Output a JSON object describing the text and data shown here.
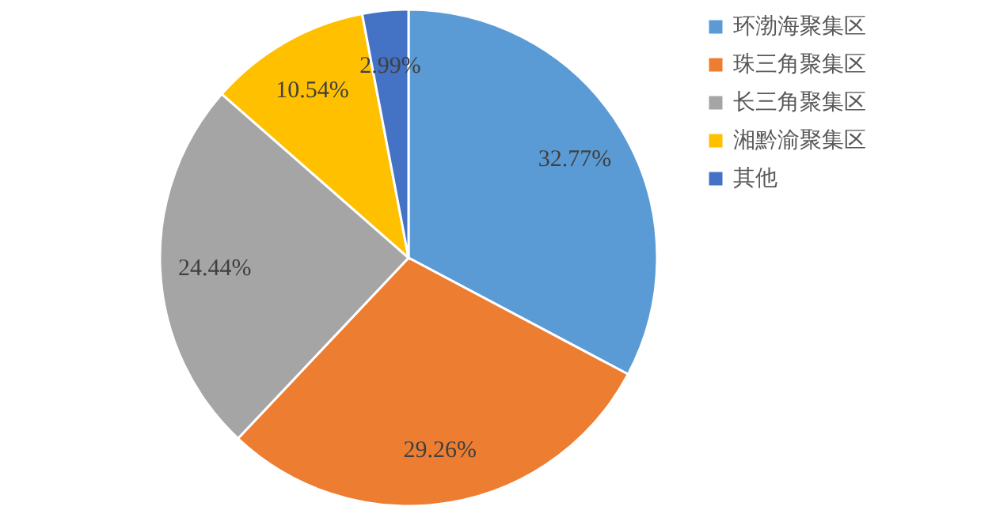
{
  "chart_data": {
    "type": "pie",
    "categories": [
      "环渤海聚集区",
      "珠三角聚集区",
      "长三角聚集区",
      "湘黔渝聚集区",
      "其他"
    ],
    "values": [
      32.77,
      29.26,
      24.44,
      10.54,
      2.99
    ],
    "colors": [
      "#5b9bd5",
      "#ed7d31",
      "#a5a5a5",
      "#ffc000",
      "#4472c4"
    ],
    "value_labels": [
      "32.77%",
      "29.26%",
      "24.44%",
      "10.54%",
      "2.99%"
    ],
    "legend": "right"
  }
}
